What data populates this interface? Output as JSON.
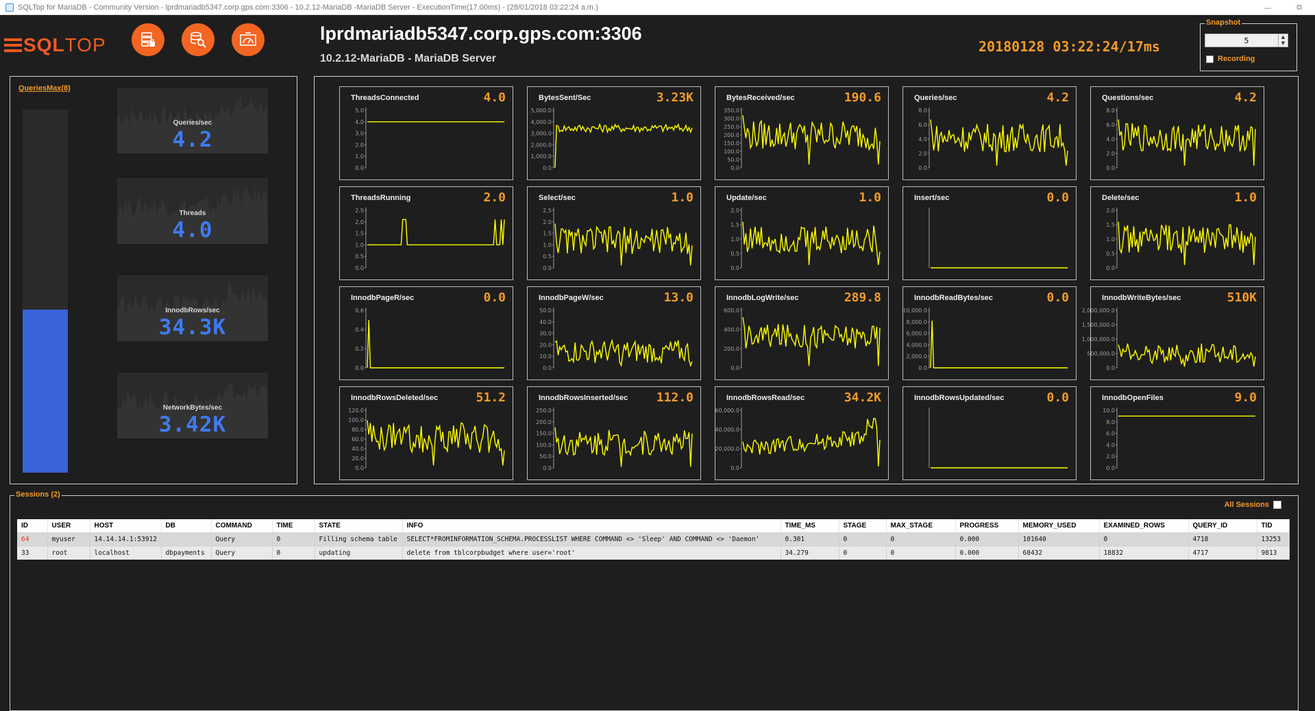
{
  "window": {
    "title": "SQLTop for MariaDB - Community Version - lprdmariadb5347.corp.gps.com:3306 - 10.2.12-MariaDB -MariaDB Server -  ExecutionTime(17.00ms)  -  (28/01/2018 03:22:24 a.m.)",
    "minimize": "—",
    "restore": "⧉"
  },
  "logo": {
    "bold": "SQL",
    "regular": "TOP"
  },
  "toolbar": {
    "buttons": [
      {
        "name": "server-button",
        "icon": "server-icon"
      },
      {
        "name": "database-search-button",
        "icon": "database-search-icon"
      },
      {
        "name": "dashboard-button",
        "icon": "dashboard-icon"
      }
    ]
  },
  "header": {
    "host": "lprdmariadb5347.corp.gps.com:3306",
    "subtitle": "10.2.12-MariaDB - MariaDB Server",
    "timestamp": "20180128 03:22:24/17ms"
  },
  "snapshot": {
    "legend": "Snapshot",
    "value": "5",
    "up": "▲",
    "down": "▼",
    "recording_label": "Recording",
    "recording": false
  },
  "left": {
    "queries_max_label": "QueriesMax(8)",
    "queries_bar_level": 0.45,
    "tiles": [
      {
        "label": "Queries/sec",
        "value": "4.2"
      },
      {
        "label": "Threads",
        "value": "4.0"
      },
      {
        "label": "InnodbRows/sec",
        "value": "34.3K"
      },
      {
        "label": "NetworkBytes/sec",
        "value": "3.42K"
      }
    ]
  },
  "colors": {
    "accent": "#f39a2a",
    "brand": "#f05a22",
    "plot_line": "#ffff00",
    "bar_fill": "#3a63d8",
    "big_value": "#3e7bf0"
  },
  "metrics": [
    {
      "title": "ThreadsConnected",
      "value": "4.0",
      "ticks": [
        "5.0",
        "4.0",
        "3.0",
        "2.0",
        "1.0",
        "0.0"
      ],
      "ymax": 5,
      "shape": "flat",
      "base": 4
    },
    {
      "title": "BytesSent/Sec",
      "value": "3.23K",
      "ticks": [
        "5,000.0",
        "4,000.0",
        "3,000.0",
        "2,000.0",
        "1,000.0",
        "0.0"
      ],
      "ymax": 5000,
      "shape": "band",
      "base": 3450,
      "amp": 350
    },
    {
      "title": "BytesReceived/sec",
      "value": "190.6",
      "ticks": [
        "350.0",
        "300.0",
        "250.0",
        "200.0",
        "150.0",
        "100.0",
        "50.0",
        "0.0"
      ],
      "ymax": 350,
      "shape": "noisy",
      "base": 200,
      "amp": 90,
      "dip": 20
    },
    {
      "title": "Queries/sec",
      "value": "4.2",
      "ticks": [
        "8.0",
        "6.0",
        "4.0",
        "2.0",
        "0.0"
      ],
      "ymax": 8,
      "shape": "noisy",
      "base": 4.2,
      "amp": 2.0,
      "dip": 0.3
    },
    {
      "title": "Questions/sec",
      "value": "4.2",
      "ticks": [
        "8.0",
        "6.0",
        "4.0",
        "2.0",
        "0.0"
      ],
      "ymax": 8,
      "shape": "noisy",
      "base": 4.2,
      "amp": 2.0,
      "dip": 0.3
    },
    {
      "title": "ThreadsRunning",
      "value": "2.0",
      "ticks": [
        "2.5",
        "2.0",
        "1.5",
        "1.0",
        "0.5",
        "0.0"
      ],
      "ymax": 2.5,
      "shape": "pulses",
      "base": 1
    },
    {
      "title": "Select/sec",
      "value": "1.0",
      "ticks": [
        "2.5",
        "2.0",
        "1.5",
        "1.0",
        "0.5",
        "0.0"
      ],
      "ymax": 2.5,
      "shape": "noisy",
      "base": 1.2,
      "amp": 0.6,
      "dip": 0.1
    },
    {
      "title": "Update/sec",
      "value": "1.0",
      "ticks": [
        "2.0",
        "1.5",
        "1.0",
        "0.5",
        "0.0"
      ],
      "ymax": 2,
      "shape": "noisy",
      "base": 1.0,
      "amp": 0.5,
      "dip": 0.1
    },
    {
      "title": "Insert/sec",
      "value": "0.0",
      "ticks": [],
      "ymax": 1,
      "shape": "zero"
    },
    {
      "title": "Delete/sec",
      "value": "1.0",
      "ticks": [
        "2.0",
        "1.5",
        "1.0",
        "0.5",
        "0.0"
      ],
      "ymax": 2,
      "shape": "noisy",
      "base": 1.0,
      "amp": 0.5,
      "dip": 0.1
    },
    {
      "title": "InnodbPageR/sec",
      "value": "0.0",
      "ticks": [
        "0.6",
        "0.4",
        "0.2",
        "0.0"
      ],
      "ymax": 0.6,
      "shape": "spike",
      "peak": 0.5
    },
    {
      "title": "InnodbPageW/sec",
      "value": "13.0",
      "ticks": [
        "50.0",
        "40.0",
        "30.0",
        "20.0",
        "10.0",
        "0.0"
      ],
      "ymax": 50,
      "shape": "noisy",
      "base": 14,
      "amp": 10,
      "dip": 2
    },
    {
      "title": "InnodbLogWrite/sec",
      "value": "289.8",
      "ticks": [
        "600.0",
        "400.0",
        "200.0",
        "0.0"
      ],
      "ymax": 600,
      "shape": "noisy",
      "base": 330,
      "amp": 130,
      "dip": 20
    },
    {
      "title": "InnodbReadBytes/sec",
      "value": "0.0",
      "ticks": [
        "10,000.0",
        "8,000.0",
        "6,000.0",
        "4,000.0",
        "2,000.0",
        "0.0"
      ],
      "ymax": 10000,
      "shape": "spike",
      "peak": 8200
    },
    {
      "title": "InnodbWriteBytes/sec",
      "value": "510K",
      "ticks": [
        "2,000,000.0",
        "1,500,000.0",
        "1,000,000.0",
        "500,000.0",
        "0.0"
      ],
      "ymax": 2000000,
      "shape": "noisy",
      "base": 500000,
      "amp": 350000,
      "dip": 40000
    },
    {
      "title": "InnodbRowsDeleted/sec",
      "value": "51.2",
      "ticks": [
        "120.0",
        "100.0",
        "80.0",
        "60.0",
        "40.0",
        "20.0",
        "0.0"
      ],
      "ymax": 120,
      "shape": "noisy",
      "base": 62,
      "amp": 32,
      "dip": 5
    },
    {
      "title": "InnodbRowsInserted/sec",
      "value": "112.0",
      "ticks": [
        "250.0",
        "200.0",
        "150.0",
        "100.0",
        "50.0",
        "0.0"
      ],
      "ymax": 250,
      "shape": "noisy",
      "base": 110,
      "amp": 55,
      "dip": 5
    },
    {
      "title": "InnodbRowsRead/sec",
      "value": "34.2K",
      "ticks": [
        "60,000.0",
        "40,000.0",
        "20,000.0",
        "0.0"
      ],
      "ymax": 60000,
      "shape": "rising",
      "base": 20000,
      "amp": 9000,
      "dip": 1500
    },
    {
      "title": "InnodbRowsUpdated/sec",
      "value": "0.0",
      "ticks": [],
      "ymax": 1,
      "shape": "zero"
    },
    {
      "title": "InnodbOpenFiles",
      "value": "9.0",
      "ticks": [
        "10.0",
        "8.0",
        "6.0",
        "4.0",
        "2.0",
        "0.0"
      ],
      "ymax": 10,
      "shape": "flat",
      "base": 9
    }
  ],
  "sessions": {
    "legend": "Sessions (2)",
    "all_sessions_label": "All Sessions",
    "columns": [
      "ID",
      "USER",
      "HOST",
      "DB",
      "COMMAND",
      "TIME",
      "STATE",
      "INFO",
      "TIME_MS",
      "STAGE",
      "MAX_STAGE",
      "PROGRESS",
      "MEMORY_USED",
      "EXAMINED_ROWS",
      "QUERY_ID",
      "TID"
    ],
    "rows": [
      [
        "64",
        "myuser",
        "14.14.14.1:53912",
        "",
        "Query",
        "0",
        "Filling schema table",
        "SELECT*FROMINFORMATION_SCHEMA.PROCESSLIST WHERE COMMAND <> 'Sleep' AND COMMAND <> 'Daemon'",
        "0.301",
        "0",
        "0",
        "0.000",
        "101640",
        "0",
        "4718",
        "13253"
      ],
      [
        "33",
        "root",
        "localhost",
        "dbpayments",
        "Query",
        "0",
        "updating",
        "delete from tblcorpbudget where user='root'",
        "34.279",
        "0",
        "0",
        "0.000",
        "68432",
        "18832",
        "4717",
        "9813"
      ]
    ]
  }
}
